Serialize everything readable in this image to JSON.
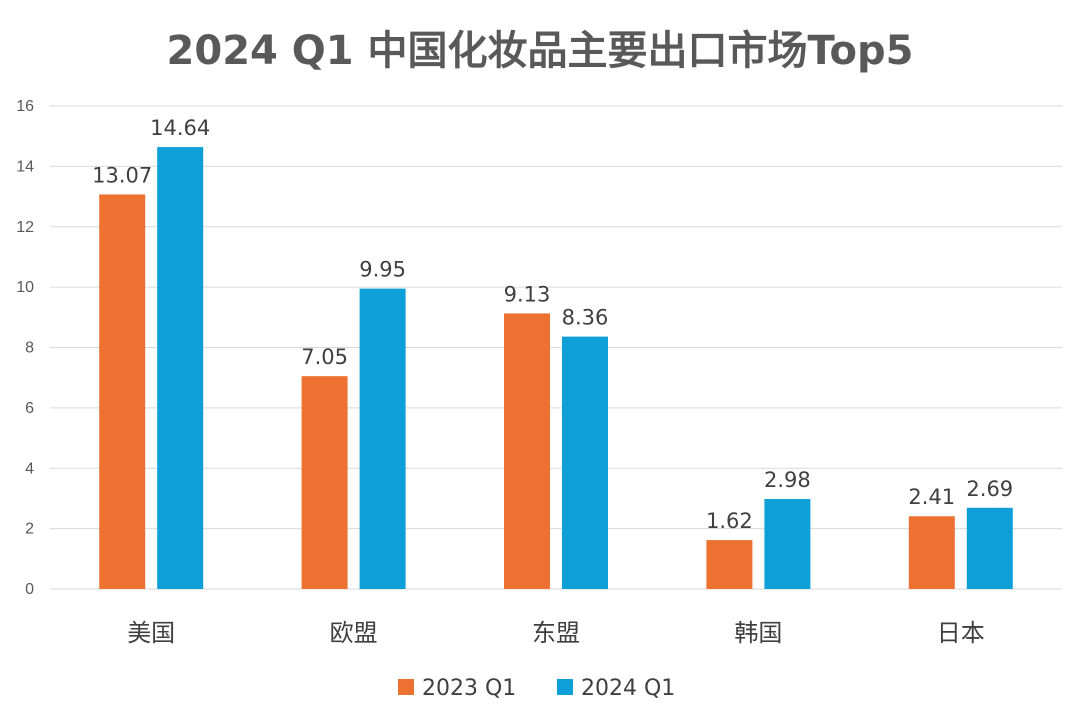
{
  "chart_data": {
    "type": "bar",
    "title": "2024 Q1 中国化妆品主要出口市场Top5",
    "categories": [
      "美国",
      "欧盟",
      "东盟",
      "韩国",
      "日本"
    ],
    "series": [
      {
        "name": "2023 Q1",
        "color": "#ED7131",
        "values": [
          13.07,
          7.05,
          9.13,
          1.62,
          2.41
        ],
        "labels": [
          "13.07",
          "7.05",
          "9.13",
          "1.62",
          "2.41"
        ]
      },
      {
        "name": "2024 Q1",
        "color": "#0F9FD8",
        "values": [
          14.64,
          9.95,
          8.36,
          2.98,
          2.69
        ],
        "labels": [
          "14.64",
          "9.95",
          "8.36",
          "2.98",
          "2.69"
        ]
      }
    ],
    "ylim": [
      0,
      16
    ],
    "yticks": [
      0,
      2,
      4,
      6,
      8,
      10,
      12,
      14,
      16
    ],
    "grid": true,
    "legend_position": "bottom"
  }
}
